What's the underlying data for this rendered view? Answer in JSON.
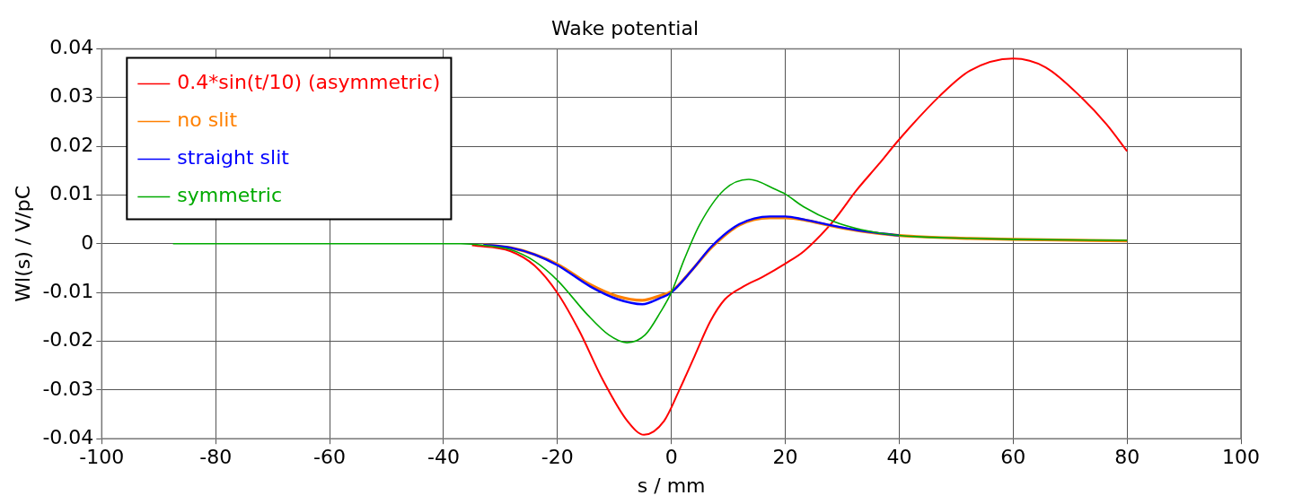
{
  "chart_data": {
    "type": "line",
    "title": "Wake potential",
    "xlabel": "s / mm",
    "ylabel": "Wl(s) / V/pC",
    "xlim": [
      -100,
      100
    ],
    "xticks": [
      -100,
      -80,
      -60,
      -40,
      -20,
      0,
      20,
      40,
      60,
      80,
      100
    ],
    "ylim": [
      -0.04,
      0.04
    ],
    "yticks": [
      -0.04,
      -0.03,
      -0.02,
      -0.01,
      0,
      0.01,
      0.02,
      0.03,
      0.04
    ],
    "grid": true,
    "legend": "top left",
    "marker": "none",
    "line_style": "solid",
    "series": [
      {
        "name": "0.4*sin(t/10) (asymmetric)",
        "color": "#ff0000",
        "x": [
          -35,
          -28.3,
          -24,
          -20,
          -16.2,
          -12,
          -7.7,
          -4.8,
          -1.3,
          1.4,
          4.1,
          6.8,
          9.4,
          12.6,
          16,
          20.1,
          23.3,
          28.4,
          32.6,
          36.4,
          40,
          47.1,
          52.4,
          60,
          65.7,
          72,
          76.4,
          80
        ],
        "values": [
          -0.0003,
          -0.0015,
          -0.0045,
          -0.0101,
          -0.0178,
          -0.028,
          -0.0364,
          -0.0392,
          -0.0364,
          -0.03,
          -0.023,
          -0.016,
          -0.0114,
          -0.0088,
          -0.0068,
          -0.004,
          -0.0015,
          0.0046,
          0.0111,
          0.0163,
          0.0214,
          0.0303,
          0.0355,
          0.038,
          0.0362,
          0.03,
          0.0245,
          0.019
        ]
      },
      {
        "name": "no slit",
        "color": "#ff8000",
        "x": [
          -33,
          -28.3,
          -24,
          -20,
          -14.2,
          -9.4,
          -5.1,
          -1.9,
          0,
          3.9,
          7.1,
          11.9,
          17.3,
          20,
          23.2,
          28.4,
          33.7,
          40,
          52.4,
          60,
          80
        ],
        "values": [
          -0.0002,
          -0.0008,
          -0.0022,
          -0.0042,
          -0.0084,
          -0.0108,
          -0.0116,
          -0.0106,
          -0.0098,
          -0.005,
          -0.0007,
          0.0038,
          0.0053,
          0.0053,
          0.0049,
          0.0036,
          0.0025,
          0.0017,
          0.0011,
          0.0009,
          0.0006
        ]
      },
      {
        "name": "straight slit",
        "color": "#0000ff",
        "x": [
          -33,
          -28.3,
          -24,
          -20,
          -14.2,
          -9.4,
          -5.1,
          -1.9,
          0,
          3.9,
          7.1,
          11.9,
          17.3,
          20,
          23.2,
          28.4,
          33.7,
          40
        ],
        "values": [
          -0.0002,
          -0.0008,
          -0.0022,
          -0.0044,
          -0.0088,
          -0.0114,
          -0.0124,
          -0.0111,
          -0.01,
          -0.005,
          -0.0005,
          0.004,
          0.0056,
          0.0056,
          0.005,
          0.0037,
          0.0026,
          0.0017
        ]
      },
      {
        "name": "symmetric",
        "color": "#00aa00",
        "x": [
          -87.5,
          -37,
          -33,
          -28.3,
          -24,
          -20,
          -14.7,
          -11,
          -7.8,
          -4.6,
          -1.9,
          0,
          2.3,
          5,
          9.3,
          13.6,
          18.4,
          20,
          23.2,
          28.4,
          33.7,
          40,
          52.4,
          60,
          80
        ],
        "values": [
          0,
          0,
          -0.0003,
          -0.0012,
          -0.0036,
          -0.0075,
          -0.0146,
          -0.0187,
          -0.0203,
          -0.0187,
          -0.014,
          -0.01,
          -0.0031,
          0.004,
          0.0111,
          0.0132,
          0.0111,
          0.0102,
          0.0076,
          0.0046,
          0.0028,
          0.0017,
          0.0011,
          0.0009,
          0.0007
        ]
      }
    ]
  }
}
